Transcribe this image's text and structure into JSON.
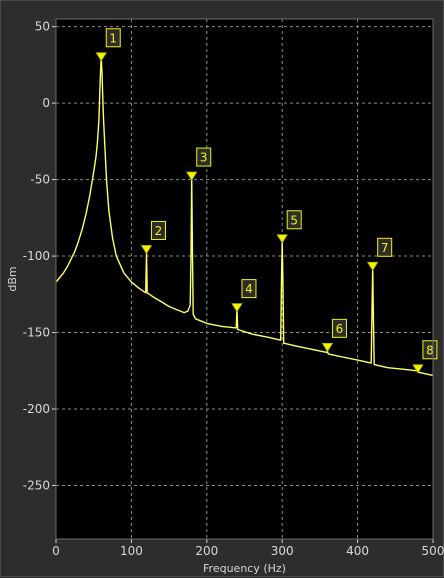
{
  "chart_data": {
    "type": "line",
    "xlabel": "Frequency (Hz)",
    "ylabel": "dBm",
    "xlim": [
      0,
      500
    ],
    "ylim": [
      -285,
      55
    ],
    "xticks": [
      0,
      100,
      200,
      300,
      400,
      500
    ],
    "yticks": [
      50,
      0,
      -50,
      -100,
      -150,
      -200,
      -250
    ],
    "grid": true,
    "background": "#000000",
    "trace_color": "#ffff66",
    "marker_color": "#f4f400",
    "series": [
      {
        "x": [
          0,
          5,
          10,
          15,
          20,
          25,
          30,
          35,
          40,
          45,
          50,
          53,
          55,
          57,
          58,
          59,
          60,
          61,
          62,
          63,
          65,
          67,
          70,
          75,
          80,
          90,
          100,
          110,
          119,
          120,
          121,
          130,
          140,
          150,
          160,
          170,
          175,
          178,
          179,
          180,
          181,
          182,
          185,
          190,
          200,
          220,
          239,
          240,
          241,
          260,
          280,
          298,
          299,
          300,
          301,
          302,
          320,
          340,
          359,
          360,
          361,
          380,
          400,
          418,
          419,
          420,
          421,
          422,
          440,
          460,
          479,
          480,
          481,
          500
        ],
        "y": [
          -117,
          -114,
          -111,
          -107,
          -102,
          -97,
          -90,
          -82,
          -72,
          -60,
          -45,
          -35,
          -25,
          -10,
          5,
          20,
          30,
          20,
          5,
          -10,
          -30,
          -50,
          -70,
          -88,
          -100,
          -111,
          -117,
          -121,
          -124,
          -97,
          -124,
          -127,
          -130,
          -133,
          -135,
          -137,
          -136,
          -132,
          -100,
          -48,
          -100,
          -138,
          -141,
          -142,
          -144,
          -146,
          -147,
          -134,
          -148,
          -151,
          -153,
          -155,
          -120,
          -90,
          -120,
          -157,
          -159,
          -161,
          -163,
          -162,
          -164,
          -166,
          -168,
          -170,
          -140,
          -107,
          -140,
          -171,
          -173,
          -174,
          -175,
          -174,
          -176,
          -178
        ]
      }
    ],
    "markers": [
      {
        "label": "1",
        "x": 60,
        "y": 29
      },
      {
        "label": "2",
        "x": 120,
        "y": -97
      },
      {
        "label": "3",
        "x": 180,
        "y": -49
      },
      {
        "label": "4",
        "x": 240,
        "y": -135
      },
      {
        "label": "5",
        "x": 300,
        "y": -90
      },
      {
        "label": "6",
        "x": 360,
        "y": -161
      },
      {
        "label": "7",
        "x": 420,
        "y": -108
      },
      {
        "label": "8",
        "x": 480,
        "y": -175
      }
    ]
  }
}
